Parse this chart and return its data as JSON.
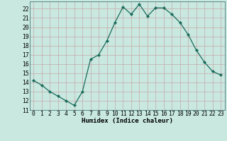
{
  "x": [
    0,
    1,
    2,
    3,
    4,
    5,
    6,
    7,
    8,
    9,
    10,
    11,
    12,
    13,
    14,
    15,
    16,
    17,
    18,
    19,
    20,
    21,
    22,
    23
  ],
  "y": [
    14.2,
    13.7,
    13.0,
    12.5,
    12.0,
    11.5,
    13.0,
    16.5,
    17.0,
    18.5,
    20.5,
    22.2,
    21.4,
    22.5,
    21.2,
    22.1,
    22.1,
    21.4,
    20.5,
    19.2,
    17.5,
    16.2,
    15.2,
    14.8
  ],
  "line_color": "#1a6b5a",
  "marker": "D",
  "marker_size": 2.2,
  "bg_color": "#c8e8e0",
  "grid_color": "#c8a8a8",
  "xlabel": "Humidex (Indice chaleur)",
  "xlim": [
    -0.5,
    23.5
  ],
  "ylim": [
    11,
    22.8
  ],
  "yticks": [
    11,
    12,
    13,
    14,
    15,
    16,
    17,
    18,
    19,
    20,
    21,
    22
  ],
  "xticks": [
    0,
    1,
    2,
    3,
    4,
    5,
    6,
    7,
    8,
    9,
    10,
    11,
    12,
    13,
    14,
    15,
    16,
    17,
    18,
    19,
    20,
    21,
    22,
    23
  ],
  "xlabel_fontsize": 6.5,
  "tick_fontsize": 5.8,
  "line_width": 0.9
}
